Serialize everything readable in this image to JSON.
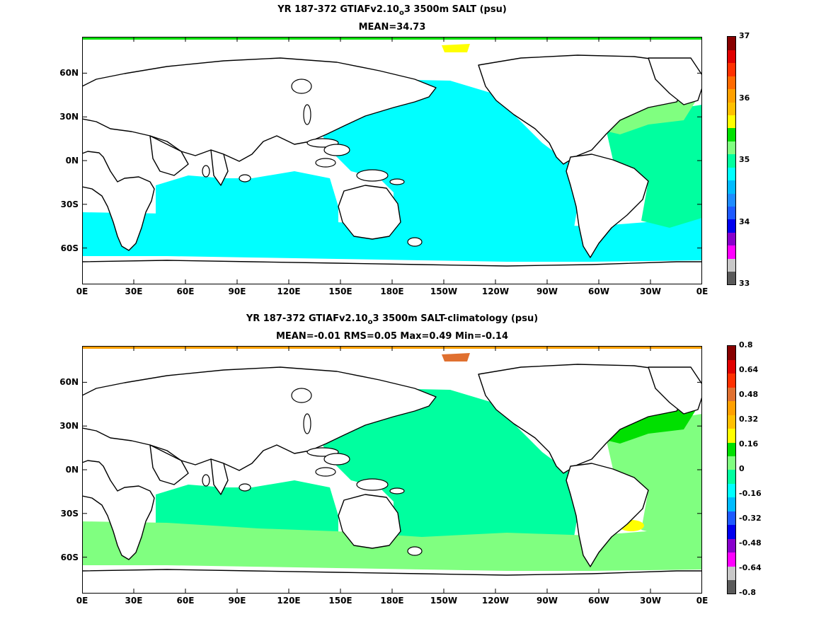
{
  "panels": [
    {
      "title_pre": "YR 187-372 GTIAFv2.10",
      "title_sub": "o",
      "title_post": "3 3500m SALT (psu)",
      "subtitle": "MEAN=34.73",
      "colorbar": {
        "colors": [
          "#5a5a5a",
          "#c8c8c8",
          "#ff00ff",
          "#8800cc",
          "#0000ee",
          "#1e5aff",
          "#1e8cff",
          "#00bbff",
          "#00ffff",
          "#00ff9f",
          "#80ff80",
          "#00e000",
          "#ffff00",
          "#ffc000",
          "#ffa000",
          "#ff6a00",
          "#ff3000",
          "#e00000",
          "#880000"
        ],
        "tick_labels": [
          "33",
          "34",
          "35",
          "36",
          "37"
        ],
        "tick_values": [
          33,
          34,
          35,
          36,
          37
        ],
        "range": [
          33,
          37
        ]
      },
      "regions": {
        "pacific": "#00ffff",
        "indian": "#00ffff",
        "southern": "#00ffff",
        "atlantic": "#00ff9f",
        "atlantic_north": "#80ff80",
        "arctic_patch": "#ffff00",
        "arctic_strip": "#00e000"
      }
    },
    {
      "title_pre": "YR 187-372 GTIAFv2.10",
      "title_sub": "o",
      "title_post": "3 3500m SALT-climatology (psu)",
      "subtitle": "MEAN=-0.01   RMS=0.05   Max=0.49   Min=-0.14",
      "colorbar": {
        "colors": [
          "#5a5a5a",
          "#c8c8c8",
          "#ff00ff",
          "#8800cc",
          "#0000ee",
          "#1e5aff",
          "#00bbff",
          "#00ffff",
          "#00ff9f",
          "#80ff80",
          "#00e000",
          "#ffff00",
          "#ffc000",
          "#ffa000",
          "#e07030",
          "#ff3000",
          "#e00000",
          "#880000"
        ],
        "tick_labels": [
          "-0.8",
          "-0.64",
          "-0.48",
          "-0.32",
          "-0.16",
          "0",
          "0.16",
          "0.32",
          "0.48",
          "0.64",
          "0.8"
        ],
        "tick_values": [
          -0.8,
          -0.64,
          -0.48,
          -0.32,
          -0.16,
          0,
          0.16,
          0.32,
          0.48,
          0.64,
          0.8
        ],
        "range": [
          -0.8,
          0.8
        ]
      },
      "regions": {
        "pacific": "#00ff9f",
        "indian": "#00ff9f",
        "southern": "#80ff80",
        "atlantic": "#80ff80",
        "atlantic_north": "#00e000",
        "arctic_patch": "#e07030",
        "arctic_strip": "#ffa000",
        "yellow_patch": "#ffff00"
      }
    }
  ],
  "x_ticks": [
    "0E",
    "30E",
    "60E",
    "90E",
    "120E",
    "150E",
    "180E",
    "150W",
    "120W",
    "90W",
    "60W",
    "30W",
    "0E"
  ],
  "y_ticks": [
    "60N",
    "30N",
    "0N",
    "30S",
    "60S"
  ]
}
